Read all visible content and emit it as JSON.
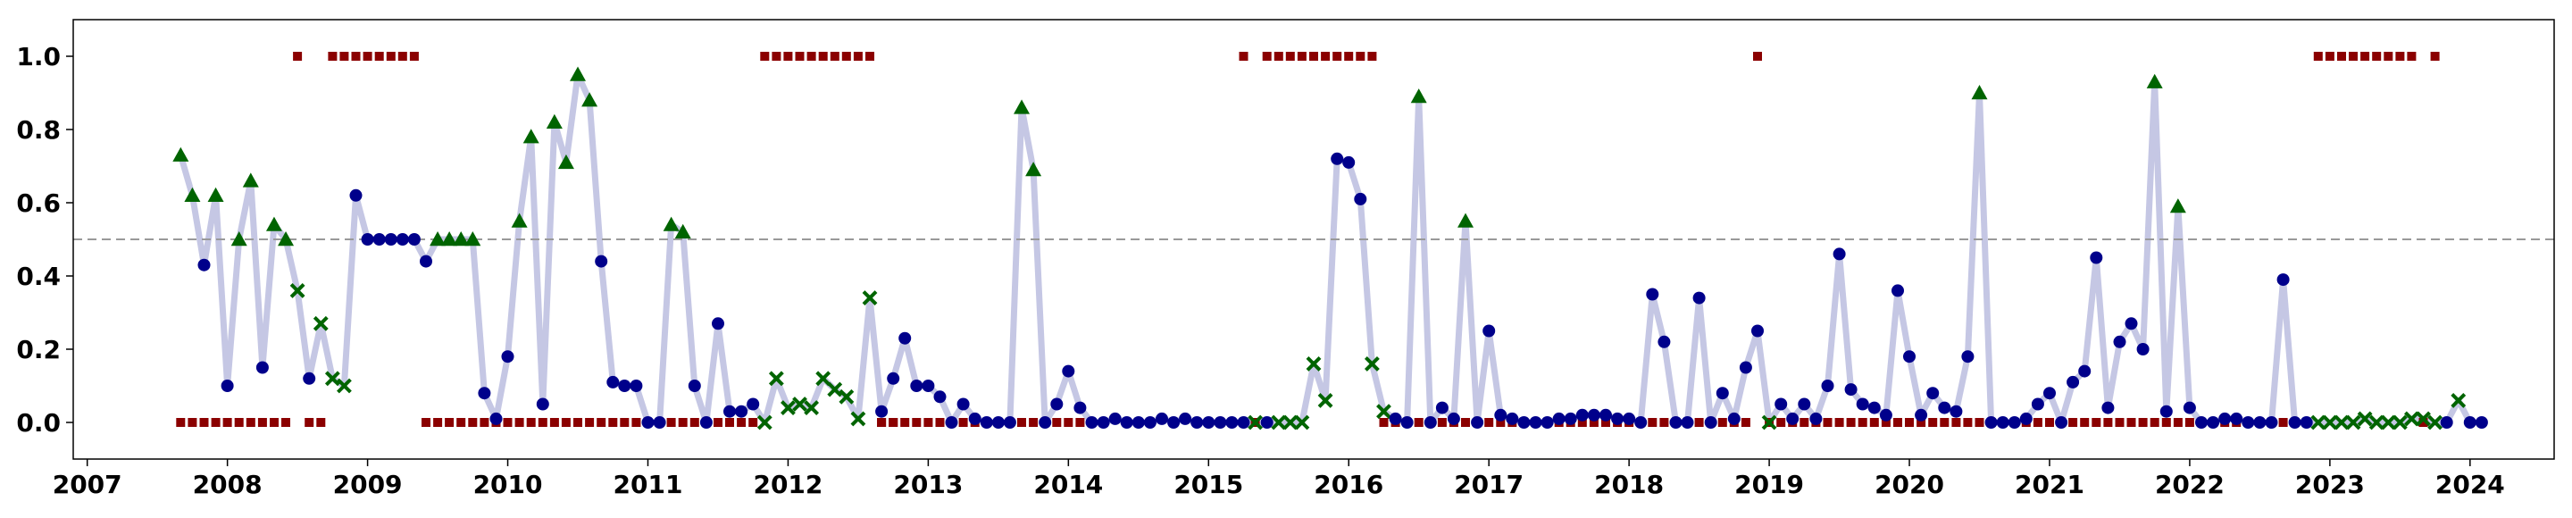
{
  "chart_data": {
    "type": "line",
    "title": "",
    "xlabel": "",
    "ylabel": "",
    "xlim": [
      2006.9,
      2024.6
    ],
    "ylim": [
      -0.1,
      1.1
    ],
    "grid": false,
    "x_ticks": [
      {
        "value": 2007,
        "label": "2007"
      },
      {
        "value": 2008,
        "label": "2008"
      },
      {
        "value": 2009,
        "label": "2009"
      },
      {
        "value": 2010,
        "label": "2010"
      },
      {
        "value": 2011,
        "label": "2011"
      },
      {
        "value": 2012,
        "label": "2012"
      },
      {
        "value": 2013,
        "label": "2013"
      },
      {
        "value": 2014,
        "label": "2014"
      },
      {
        "value": 2015,
        "label": "2015"
      },
      {
        "value": 2016,
        "label": "2016"
      },
      {
        "value": 2017,
        "label": "2017"
      },
      {
        "value": 2018,
        "label": "2018"
      },
      {
        "value": 2019,
        "label": "2019"
      },
      {
        "value": 2020,
        "label": "2020"
      },
      {
        "value": 2021,
        "label": "2021"
      },
      {
        "value": 2022,
        "label": "2022"
      },
      {
        "value": 2023,
        "label": "2023"
      },
      {
        "value": 2024,
        "label": "2024"
      }
    ],
    "y_ticks": [
      {
        "value": 0.0,
        "label": "0.0"
      },
      {
        "value": 0.2,
        "label": "0.2"
      },
      {
        "value": 0.4,
        "label": "0.4"
      },
      {
        "value": 0.6,
        "label": "0.6"
      },
      {
        "value": 0.8,
        "label": "0.8"
      },
      {
        "value": 1.0,
        "label": "1.0"
      }
    ],
    "threshold": {
      "value": 0.5,
      "style": "dashed",
      "color": "#999999"
    },
    "colors": {
      "line": "#c5c7e4",
      "circle": "#00008b",
      "triangle": "#006400",
      "cross": "#006400",
      "square": "#8b0000"
    },
    "series_start": "2007-09",
    "main_series": [
      [
        0.73,
        "t"
      ],
      [
        0.62,
        "t"
      ],
      [
        0.43,
        "c"
      ],
      [
        0.62,
        "t"
      ],
      [
        0.1,
        "c"
      ],
      [
        0.5,
        "t"
      ],
      [
        0.66,
        "t"
      ],
      [
        0.15,
        "c"
      ],
      [
        0.54,
        "t"
      ],
      [
        0.5,
        "t"
      ],
      [
        0.36,
        "x"
      ],
      [
        0.12,
        "c"
      ],
      [
        0.27,
        "x"
      ],
      [
        0.12,
        "x"
      ],
      [
        0.1,
        "x"
      ],
      [
        0.62,
        "c"
      ],
      [
        0.5,
        "c"
      ],
      [
        0.5,
        "c"
      ],
      [
        0.5,
        "c"
      ],
      [
        0.5,
        "c"
      ],
      [
        0.5,
        "c"
      ],
      [
        0.44,
        "c"
      ],
      [
        0.5,
        "t"
      ],
      [
        0.5,
        "t"
      ],
      [
        0.5,
        "t"
      ],
      [
        0.5,
        "t"
      ],
      [
        0.08,
        "c"
      ],
      [
        0.01,
        "c"
      ],
      [
        0.18,
        "c"
      ],
      [
        0.55,
        "t"
      ],
      [
        0.78,
        "t"
      ],
      [
        0.05,
        "c"
      ],
      [
        0.82,
        "t"
      ],
      [
        0.71,
        "t"
      ],
      [
        0.95,
        "t"
      ],
      [
        0.88,
        "t"
      ],
      [
        0.44,
        "c"
      ],
      [
        0.11,
        "c"
      ],
      [
        0.1,
        "c"
      ],
      [
        0.1,
        "c"
      ],
      [
        0.0,
        "c"
      ],
      [
        0.0,
        "c"
      ],
      [
        0.54,
        "t"
      ],
      [
        0.52,
        "t"
      ],
      [
        0.1,
        "c"
      ],
      [
        0.0,
        "c"
      ],
      [
        0.27,
        "c"
      ],
      [
        0.03,
        "c"
      ],
      [
        0.03,
        "c"
      ],
      [
        0.05,
        "c"
      ],
      [
        0.0,
        "x"
      ],
      [
        0.12,
        "x"
      ],
      [
        0.04,
        "x"
      ],
      [
        0.05,
        "x"
      ],
      [
        0.04,
        "x"
      ],
      [
        0.12,
        "x"
      ],
      [
        0.09,
        "x"
      ],
      [
        0.07,
        "x"
      ],
      [
        0.01,
        "x"
      ],
      [
        0.34,
        "x"
      ],
      [
        0.03,
        "c"
      ],
      [
        0.12,
        "c"
      ],
      [
        0.23,
        "c"
      ],
      [
        0.1,
        "c"
      ],
      [
        0.1,
        "c"
      ],
      [
        0.07,
        "c"
      ],
      [
        0.0,
        "c"
      ],
      [
        0.05,
        "c"
      ],
      [
        0.01,
        "c"
      ],
      [
        0.0,
        "c"
      ],
      [
        0.0,
        "c"
      ],
      [
        0.0,
        "c"
      ],
      [
        0.86,
        "t"
      ],
      [
        0.69,
        "t"
      ],
      [
        0.0,
        "c"
      ],
      [
        0.05,
        "c"
      ],
      [
        0.14,
        "c"
      ],
      [
        0.04,
        "c"
      ],
      [
        0.0,
        "c"
      ],
      [
        0.0,
        "c"
      ],
      [
        0.01,
        "c"
      ],
      [
        0.0,
        "c"
      ],
      [
        0.0,
        "c"
      ],
      [
        0.0,
        "c"
      ],
      [
        0.01,
        "c"
      ],
      [
        0.0,
        "c"
      ],
      [
        0.01,
        "c"
      ],
      [
        0.0,
        "c"
      ],
      [
        0.0,
        "c"
      ],
      [
        0.0,
        "c"
      ],
      [
        0.0,
        "c"
      ],
      [
        0.0,
        "c"
      ],
      [
        0.0,
        "x"
      ],
      [
        0.0,
        "c"
      ],
      [
        0.0,
        "x"
      ],
      [
        0.0,
        "x"
      ],
      [
        0.0,
        "x"
      ],
      [
        0.16,
        "x"
      ],
      [
        0.06,
        "x"
      ],
      [
        0.72,
        "c"
      ],
      [
        0.71,
        "c"
      ],
      [
        0.61,
        "c"
      ],
      [
        0.16,
        "x"
      ],
      [
        0.03,
        "x"
      ],
      [
        0.01,
        "c"
      ],
      [
        0.0,
        "c"
      ],
      [
        0.89,
        "t"
      ],
      [
        0.0,
        "c"
      ],
      [
        0.04,
        "c"
      ],
      [
        0.01,
        "c"
      ],
      [
        0.55,
        "t"
      ],
      [
        0.0,
        "c"
      ],
      [
        0.25,
        "c"
      ],
      [
        0.02,
        "c"
      ],
      [
        0.01,
        "c"
      ],
      [
        0.0,
        "c"
      ],
      [
        0.0,
        "c"
      ],
      [
        0.0,
        "c"
      ],
      [
        0.01,
        "c"
      ],
      [
        0.01,
        "c"
      ],
      [
        0.02,
        "c"
      ],
      [
        0.02,
        "c"
      ],
      [
        0.02,
        "c"
      ],
      [
        0.01,
        "c"
      ],
      [
        0.01,
        "c"
      ],
      [
        0.0,
        "c"
      ],
      [
        0.35,
        "c"
      ],
      [
        0.22,
        "c"
      ],
      [
        0.0,
        "c"
      ],
      [
        0.0,
        "c"
      ],
      [
        0.34,
        "c"
      ],
      [
        0.0,
        "c"
      ],
      [
        0.08,
        "c"
      ],
      [
        0.01,
        "c"
      ],
      [
        0.15,
        "c"
      ],
      [
        0.25,
        "c"
      ],
      [
        0.0,
        "x"
      ],
      [
        0.05,
        "c"
      ],
      [
        0.01,
        "c"
      ],
      [
        0.05,
        "c"
      ],
      [
        0.01,
        "c"
      ],
      [
        0.1,
        "c"
      ],
      [
        0.46,
        "c"
      ],
      [
        0.09,
        "c"
      ],
      [
        0.05,
        "c"
      ],
      [
        0.04,
        "c"
      ],
      [
        0.02,
        "c"
      ],
      [
        0.36,
        "c"
      ],
      [
        0.18,
        "c"
      ],
      [
        0.02,
        "c"
      ],
      [
        0.08,
        "c"
      ],
      [
        0.04,
        "c"
      ],
      [
        0.03,
        "c"
      ],
      [
        0.18,
        "c"
      ],
      [
        0.9,
        "t"
      ],
      [
        0.0,
        "c"
      ],
      [
        0.0,
        "c"
      ],
      [
        0.0,
        "c"
      ],
      [
        0.01,
        "c"
      ],
      [
        0.05,
        "c"
      ],
      [
        0.08,
        "c"
      ],
      [
        0.0,
        "c"
      ],
      [
        0.11,
        "c"
      ],
      [
        0.14,
        "c"
      ],
      [
        0.45,
        "c"
      ],
      [
        0.04,
        "c"
      ],
      [
        0.22,
        "c"
      ],
      [
        0.27,
        "c"
      ],
      [
        0.2,
        "c"
      ],
      [
        0.93,
        "t"
      ],
      [
        0.03,
        "c"
      ],
      [
        0.59,
        "t"
      ],
      [
        0.04,
        "c"
      ],
      [
        0.0,
        "c"
      ],
      [
        0.0,
        "c"
      ],
      [
        0.01,
        "c"
      ],
      [
        0.01,
        "c"
      ],
      [
        0.0,
        "c"
      ],
      [
        0.0,
        "c"
      ],
      [
        0.0,
        "c"
      ],
      [
        0.39,
        "c"
      ],
      [
        0.0,
        "c"
      ],
      [
        0.0,
        "c"
      ],
      [
        0.0,
        "x"
      ],
      [
        0.0,
        "x"
      ],
      [
        0.0,
        "x"
      ],
      [
        0.0,
        "x"
      ],
      [
        0.01,
        "x"
      ],
      [
        0.0,
        "x"
      ],
      [
        0.0,
        "x"
      ],
      [
        0.0,
        "x"
      ],
      [
        0.01,
        "x"
      ],
      [
        0.01,
        "x"
      ],
      [
        0.0,
        "x"
      ],
      [
        0.0,
        "c"
      ],
      [
        0.06,
        "x"
      ],
      [
        0.0,
        "c"
      ],
      [
        0.0,
        "c"
      ]
    ],
    "label_segments": [
      {
        "start": "2007-09",
        "values": [
          0,
          0,
          0,
          0,
          0,
          0,
          0,
          0,
          0,
          0,
          1,
          0,
          0,
          1,
          1,
          1,
          1,
          1,
          1,
          1,
          1,
          0,
          0,
          0,
          0,
          0,
          0,
          0,
          0,
          0,
          0,
          0,
          0,
          0,
          0,
          0,
          0,
          0,
          0,
          0,
          0,
          0,
          0,
          0,
          0,
          0,
          0,
          0,
          0,
          0,
          1,
          1,
          1,
          1,
          1,
          1,
          1,
          1,
          1,
          1,
          0,
          0
        ]
      },
      {
        "start": "2012-09",
        "values": [
          0,
          0,
          0,
          0,
          0,
          0,
          0,
          0,
          0,
          0,
          0,
          0,
          0,
          0,
          0,
          0,
          0,
          0,
          0,
          0
        ]
      },
      {
        "start": "2015-04",
        "values": [
          1,
          0,
          1,
          1,
          1,
          1,
          1,
          1,
          1,
          1,
          1,
          1
        ]
      },
      {
        "start": "2016-04",
        "values": [
          0,
          0,
          0,
          0,
          0,
          0,
          0,
          0,
          0,
          0,
          0,
          0,
          0,
          0,
          0,
          0,
          0,
          0,
          0,
          0,
          0,
          0,
          0,
          0,
          0,
          0,
          0,
          0,
          0,
          0,
          0,
          0,
          1,
          0,
          0,
          0,
          0,
          0,
          0,
          0,
          0,
          0,
          0,
          0,
          0,
          0,
          0,
          0,
          0,
          0,
          0,
          0,
          0,
          0,
          0,
          0,
          0,
          0,
          0,
          0,
          0,
          0,
          0,
          0,
          0,
          0,
          0,
          0,
          0,
          0,
          0,
          0,
          0,
          0,
          0,
          0,
          0,
          0,
          0,
          0
        ]
      },
      {
        "start": "2022-12",
        "values": [
          1,
          1,
          1,
          1,
          1,
          1,
          1,
          1,
          1,
          0,
          1
        ]
      }
    ]
  }
}
